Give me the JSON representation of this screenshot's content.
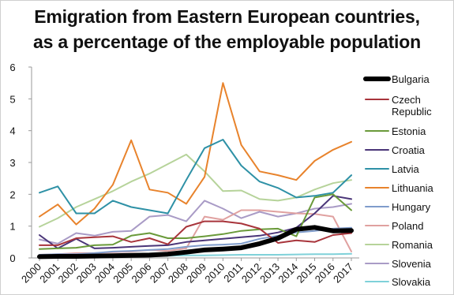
{
  "colors": {
    "Bulgaria": "#000000",
    "Czech Republic": "#a8343b",
    "Estonia": "#6a9a3a",
    "Croatia": "#4a3578",
    "Latvia": "#2e91a6",
    "Lithuania": "#e8832c",
    "Hungary": "#7f9ccb",
    "Poland": "#e0a1a0",
    "Romania": "#b6d39a",
    "Slovenia": "#a99bc6",
    "Slovakia": "#7fd1d9"
  },
  "chart_data": {
    "type": "line",
    "title": "Emigration from Eastern European countries, as a percentage of the employable population",
    "title_lines": [
      "Emigration from Eastern European countries,",
      "as a percentage of the employable population"
    ],
    "xlabel": "",
    "ylabel": "",
    "x": [
      "2000",
      "2001",
      "2002",
      "2003",
      "2004",
      "2005",
      "2006",
      "2007",
      "2008",
      "2009",
      "2010",
      "2011",
      "2012",
      "2013",
      "2014",
      "2015",
      "2016",
      "2017"
    ],
    "ylim": [
      0,
      6
    ],
    "yticks": [
      0,
      1,
      2,
      3,
      4,
      5,
      6
    ],
    "grid": false,
    "legend": "right",
    "legend_lines": {
      "Bulgaria": [
        "Bulgaria"
      ],
      "Czech Republic": [
        "Czech",
        "Republic"
      ],
      "Estonia": [
        "Estonia"
      ],
      "Croatia": [
        "Croatia"
      ],
      "Latvia": [
        "Latvia"
      ],
      "Lithuania": [
        "Lithuania"
      ],
      "Hungary": [
        "Hungary"
      ],
      "Poland": [
        "Poland"
      ],
      "Romania": [
        "Romania"
      ],
      "Slovenia": [
        "Slovenia"
      ],
      "Slovakia": [
        "Slovakia"
      ]
    },
    "series": [
      {
        "name": "Bulgaria",
        "values": [
          0.04,
          0.05,
          0.05,
          0.06,
          0.07,
          0.08,
          0.09,
          0.12,
          0.18,
          0.25,
          0.28,
          0.32,
          0.45,
          0.62,
          0.9,
          0.96,
          0.85,
          0.86
        ]
      },
      {
        "name": "Czech Republic",
        "values": [
          0.4,
          0.4,
          0.62,
          0.65,
          0.68,
          0.5,
          0.62,
          0.43,
          0.98,
          1.15,
          1.15,
          1.08,
          0.92,
          0.47,
          0.55,
          0.5,
          0.72,
          0.78
        ]
      },
      {
        "name": "Estonia",
        "values": [
          0.28,
          0.3,
          0.32,
          0.4,
          0.42,
          0.7,
          0.78,
          0.62,
          0.62,
          0.68,
          0.75,
          0.85,
          0.9,
          0.92,
          0.68,
          1.9,
          2.0,
          1.5
        ]
      },
      {
        "name": "Croatia",
        "values": [
          0.72,
          0.3,
          0.6,
          0.3,
          0.32,
          0.35,
          0.38,
          0.4,
          0.5,
          0.55,
          0.6,
          0.65,
          0.7,
          0.8,
          0.95,
          1.4,
          1.95,
          1.85
        ]
      },
      {
        "name": "Latvia",
        "values": [
          2.05,
          2.25,
          1.4,
          1.4,
          1.8,
          1.6,
          1.5,
          1.4,
          2.45,
          3.45,
          3.72,
          2.9,
          2.4,
          2.2,
          1.9,
          1.95,
          2.05,
          2.6
        ]
      },
      {
        "name": "Lithuania",
        "values": [
          1.3,
          1.68,
          1.05,
          1.55,
          2.3,
          3.7,
          2.15,
          2.05,
          1.7,
          2.55,
          5.5,
          3.55,
          2.72,
          2.6,
          2.45,
          3.05,
          3.4,
          3.65
        ]
      },
      {
        "name": "Hungary",
        "values": [
          0.1,
          0.12,
          0.12,
          0.15,
          0.2,
          0.22,
          0.25,
          0.28,
          0.35,
          0.4,
          0.42,
          0.45,
          0.6,
          0.7,
          0.8,
          0.85,
          0.92,
          0.95
        ]
      },
      {
        "name": "Poland",
        "values": [
          0.1,
          0.12,
          0.15,
          0.15,
          0.18,
          0.2,
          0.25,
          0.22,
          0.3,
          1.3,
          1.2,
          1.5,
          1.5,
          1.45,
          1.4,
          1.38,
          1.3,
          0.2
        ]
      },
      {
        "name": "Romania",
        "values": [
          0.98,
          1.25,
          1.6,
          1.85,
          2.1,
          2.4,
          2.65,
          2.95,
          3.25,
          2.72,
          2.1,
          2.12,
          1.85,
          1.8,
          1.9,
          2.15,
          2.35,
          2.45
        ]
      },
      {
        "name": "Slovenia",
        "values": [
          0.58,
          0.45,
          0.78,
          0.7,
          0.82,
          0.85,
          1.3,
          1.35,
          1.15,
          1.8,
          1.55,
          1.25,
          1.45,
          1.3,
          1.4,
          1.55,
          1.6,
          1.7
        ]
      },
      {
        "name": "Slovakia",
        "values": [
          0.05,
          0.05,
          0.05,
          0.05,
          0.06,
          0.06,
          0.07,
          0.07,
          0.08,
          0.08,
          0.09,
          0.1,
          0.1,
          0.1,
          0.11,
          0.12,
          0.12,
          0.13
        ]
      }
    ]
  }
}
